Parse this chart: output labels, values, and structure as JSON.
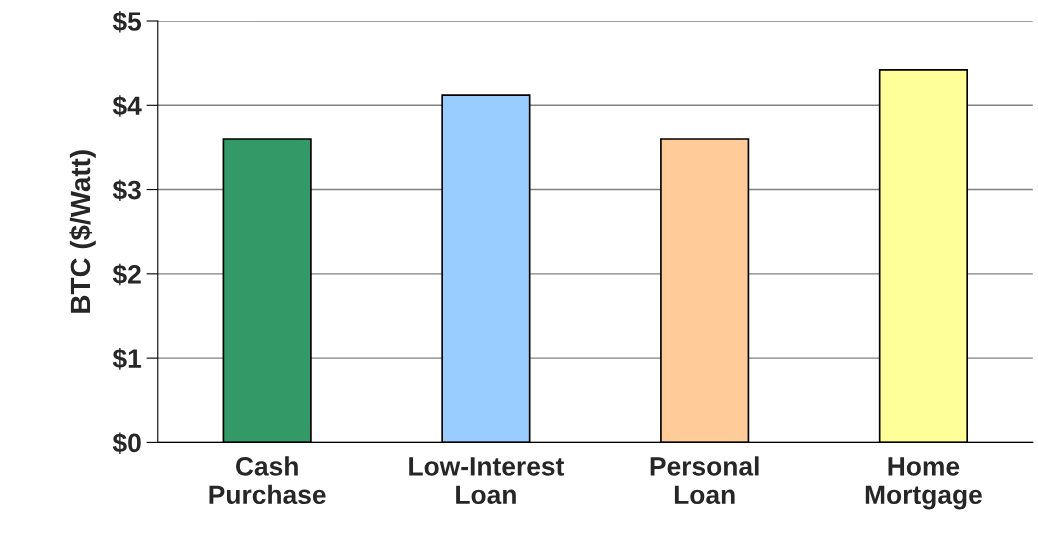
{
  "chart_data": {
    "type": "bar",
    "ylabel": "BTC ($/Watt)",
    "categories": [
      "Cash\nPurchase",
      "Low-Interest\nLoan",
      "Personal\nLoan",
      "Home\nMortgage"
    ],
    "values": [
      3.6,
      4.12,
      3.6,
      4.42
    ],
    "colors": [
      "#339966",
      "#99ccff",
      "#ffcc99",
      "#ffff99"
    ],
    "ylim": [
      0,
      5
    ],
    "yticks": [
      {
        "value": 0,
        "label": "$0"
      },
      {
        "value": 1,
        "label": "$1"
      },
      {
        "value": 2,
        "label": "$2"
      },
      {
        "value": 3,
        "label": "$3"
      },
      {
        "value": 4,
        "label": "$4"
      },
      {
        "value": 5,
        "label": "$5"
      }
    ],
    "grid": "y",
    "legend": false
  }
}
